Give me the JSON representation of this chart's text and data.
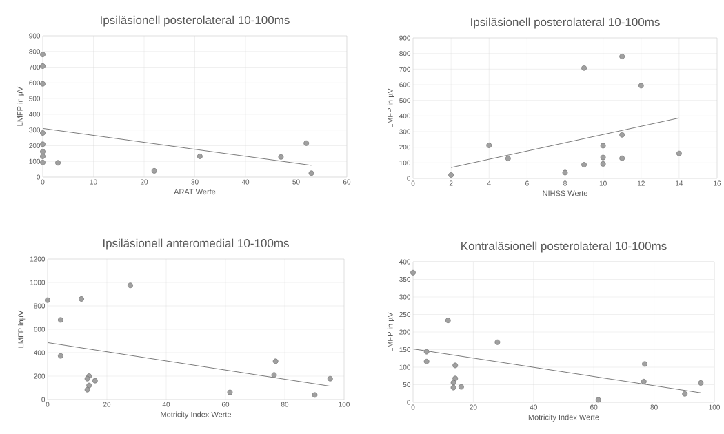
{
  "chart_data": [
    {
      "type": "scatter",
      "title": "Ipsiläsionell posterolateral 10-100ms",
      "xlabel": "ARAT Werte",
      "ylabel": "LMFP in µV",
      "xlim": [
        0,
        60
      ],
      "xticks": [
        0,
        10,
        20,
        30,
        40,
        50,
        60
      ],
      "ylim": [
        0,
        900
      ],
      "yticks": [
        0,
        100,
        200,
        300,
        400,
        500,
        600,
        700,
        800,
        900
      ],
      "grid": true,
      "series": [
        {
          "color": "#a0a0a0",
          "marker": "circle",
          "x": [
            0,
            0,
            0,
            0,
            0,
            0,
            0,
            0,
            3,
            22,
            31,
            47,
            52,
            53
          ],
          "values": [
            781,
            707,
            594,
            281,
            209,
            162,
            132,
            93,
            91,
            40,
            132,
            128,
            216,
            25
          ]
        },
        {
          "type": "line",
          "marker": "none",
          "color": "#595959",
          "x": [
            0,
            53
          ],
          "values": [
            310,
            75
          ]
        }
      ]
    },
    {
      "type": "scatter",
      "title": "Ipsiläsionell posterolateral 10-100ms",
      "xlabel": "NIHSS Werte",
      "ylabel": "LMFP in µV",
      "xlim": [
        0,
        16
      ],
      "xticks": [
        0,
        2,
        4,
        6,
        8,
        10,
        12,
        14,
        16
      ],
      "ylim": [
        0,
        900
      ],
      "yticks": [
        0,
        100,
        200,
        300,
        400,
        500,
        600,
        700,
        800,
        900
      ],
      "grid": true,
      "series": [
        {
          "color": "#a0a0a0",
          "marker": "circle",
          "x": [
            2,
            4,
            5,
            8,
            9,
            9,
            10,
            10,
            10,
            11,
            11,
            11,
            12,
            14
          ],
          "values": [
            22,
            212,
            128,
            38,
            88,
            707,
            210,
            134,
            93,
            781,
            279,
            129,
            594,
            160
          ]
        },
        {
          "type": "line",
          "marker": "none",
          "color": "#595959",
          "x": [
            2,
            14
          ],
          "values": [
            70,
            387
          ]
        }
      ]
    },
    {
      "type": "scatter",
      "title": "Ipsiläsionell anteromedial 10-100ms",
      "xlabel": "Motricity Index Werte",
      "ylabel": "LMFP inµV",
      "xlim": [
        0,
        100
      ],
      "xticks": [
        0,
        20,
        40,
        60,
        80,
        100
      ],
      "ylim": [
        0,
        1200
      ],
      "yticks": [
        0,
        200,
        400,
        600,
        800,
        1000,
        1200
      ],
      "grid": true,
      "series": [
        {
          "color": "#a0a0a0",
          "marker": "circle",
          "x": [
            0,
            4.4,
            4.4,
            11.4,
            27.9,
            14,
            13.4,
            14,
            13.4,
            16,
            61.5,
            76.4,
            76.9,
            90.1,
            95.3
          ],
          "values": [
            849,
            680,
            373,
            859,
            975,
            200,
            178,
            120,
            84,
            161,
            61,
            210,
            327,
            39,
            178
          ]
        },
        {
          "type": "line",
          "marker": "none",
          "color": "#595959",
          "x": [
            0,
            95.3
          ],
          "values": [
            486,
            114
          ]
        }
      ]
    },
    {
      "type": "scatter",
      "title": "Kontraläsionell posterolateral 10-100ms",
      "xlabel": "Motricity Index Werte",
      "ylabel": "LMFP in µV",
      "xlim": [
        0,
        100
      ],
      "xticks": [
        0,
        20,
        40,
        60,
        80,
        100
      ],
      "ylim": [
        0,
        400
      ],
      "yticks": [
        0,
        50,
        100,
        150,
        200,
        250,
        300,
        350,
        400
      ],
      "grid": true,
      "series": [
        {
          "color": "#a0a0a0",
          "marker": "circle",
          "x": [
            0,
            4.5,
            4.5,
            11.6,
            28,
            14,
            14,
            13.4,
            13.4,
            16,
            61.5,
            76.9,
            76.6,
            90.2,
            95.5
          ],
          "values": [
            369,
            144,
            116,
            233,
            171,
            105,
            68,
            56,
            42,
            44,
            7,
            109,
            59,
            24,
            55
          ]
        },
        {
          "type": "line",
          "marker": "none",
          "color": "#595959",
          "x": [
            0,
            95.5
          ],
          "values": [
            152,
            27
          ]
        }
      ]
    }
  ]
}
